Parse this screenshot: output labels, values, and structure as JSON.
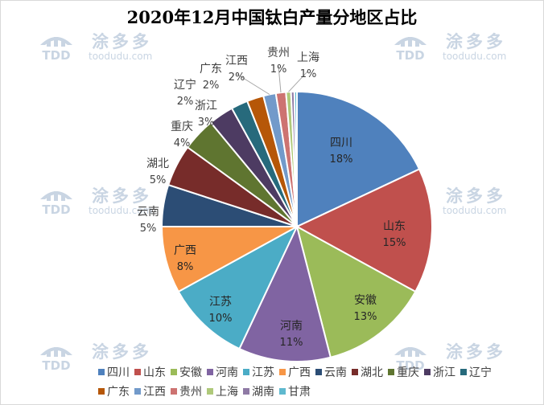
{
  "title": "2020年12月中国钛白产量分地区占比",
  "watermark": {
    "cn": "涂多多",
    "url": "toodudu.com",
    "logo_text": "TDD"
  },
  "chart_data": {
    "type": "pie",
    "title": "2020年12月中国钛白产量分地区占比",
    "legend_position": "bottom",
    "slices": [
      {
        "name": "四川",
        "value": 18,
        "label": "18%",
        "color": "#4f81bd"
      },
      {
        "name": "山东",
        "value": 15,
        "label": "15%",
        "color": "#c0504d"
      },
      {
        "name": "安徽",
        "value": 13,
        "label": "13%",
        "color": "#9bbb59"
      },
      {
        "name": "河南",
        "value": 11,
        "label": "11%",
        "color": "#8064a2"
      },
      {
        "name": "江苏",
        "value": 10,
        "label": "10%",
        "color": "#4bacc6"
      },
      {
        "name": "广西",
        "value": 8,
        "label": "8%",
        "color": "#f79646"
      },
      {
        "name": "云南",
        "value": 5,
        "label": "5%",
        "color": "#2c4d75"
      },
      {
        "name": "湖北",
        "value": 5,
        "label": "5%",
        "color": "#772c2a"
      },
      {
        "name": "重庆",
        "value": 4,
        "label": "4%",
        "color": "#5f7530"
      },
      {
        "name": "浙江",
        "value": 3,
        "label": "3%",
        "color": "#4d3b62"
      },
      {
        "name": "辽宁",
        "value": 2,
        "label": "2%",
        "color": "#276a7c"
      },
      {
        "name": "广东",
        "value": 2,
        "label": "2%",
        "color": "#b65708"
      },
      {
        "name": "江西",
        "value": 1.5,
        "label": "2%",
        "color": "#729aca"
      },
      {
        "name": "贵州",
        "value": 1.2,
        "label": "1%",
        "color": "#cd7371"
      },
      {
        "name": "上海",
        "value": 0.6,
        "label": "1%",
        "color": "#afc97a"
      },
      {
        "name": "湖南",
        "value": 0.4,
        "label": "",
        "color": "#8f7aa5"
      },
      {
        "name": "甘肃",
        "value": 0.3,
        "label": "",
        "color": "#5fb9cf"
      }
    ]
  }
}
